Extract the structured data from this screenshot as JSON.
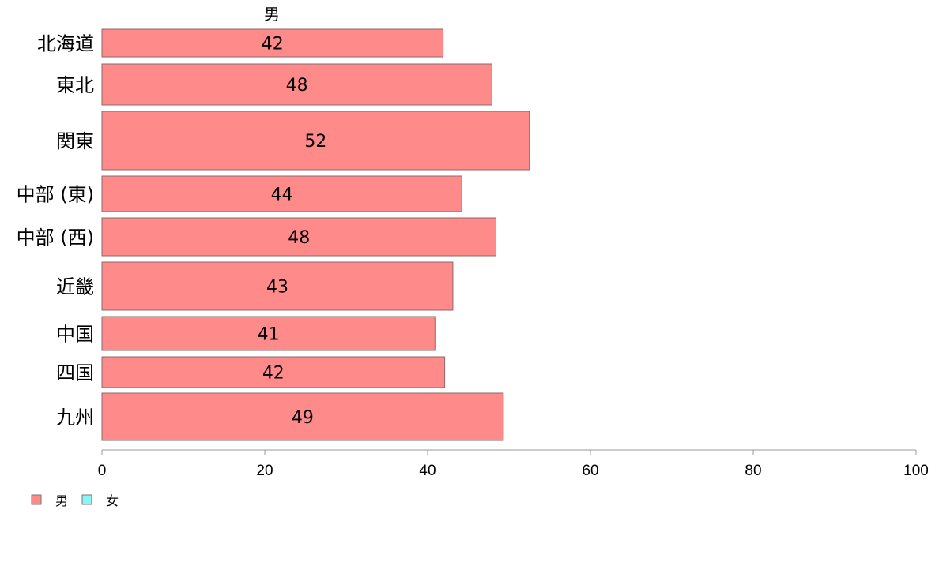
{
  "chart_data": {
    "type": "bar",
    "orientation": "horizontal",
    "title": "",
    "panel_title": "男",
    "xlabel": "",
    "ylabel": "",
    "xlim": [
      0,
      100
    ],
    "x_ticks": [
      0,
      20,
      40,
      60,
      80,
      100
    ],
    "grid": false,
    "legend_position": "bottom-left",
    "bar_width_variable": true,
    "categories": [
      "北海道",
      "東北",
      "関東",
      "中部 (東)",
      "中部 (西)",
      "近畿",
      "中国",
      "四国",
      "九州"
    ],
    "series": [
      {
        "name": "男",
        "color": "#ff8a8a",
        "values": [
          42,
          48,
          52,
          44,
          48,
          43,
          41,
          42,
          49
        ],
        "exact_values": [
          41.9,
          47.9,
          52.5,
          44.2,
          48.4,
          43.1,
          40.9,
          42.1,
          49.3
        ]
      }
    ],
    "legend": [
      {
        "name": "男",
        "color": "#ff8a8a"
      },
      {
        "name": "女",
        "color": "#8af5f5"
      }
    ]
  }
}
